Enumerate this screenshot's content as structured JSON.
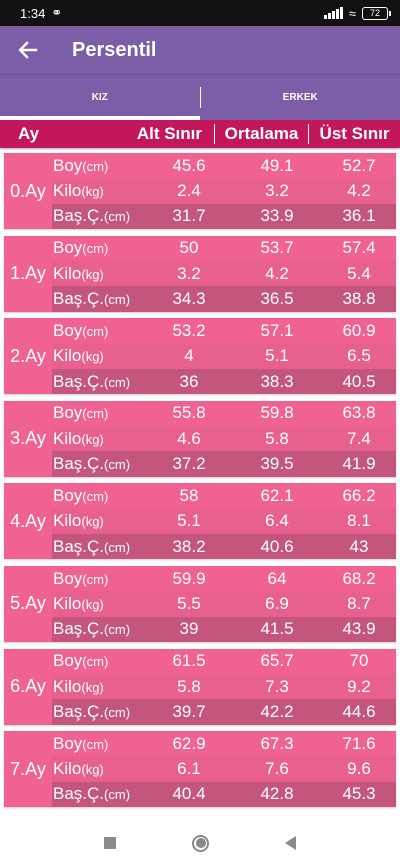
{
  "status_bar": {
    "time": "1:34",
    "battery": "72"
  },
  "app_bar": {
    "title": "Persentil"
  },
  "tabs": [
    {
      "label": "KIZ",
      "active": true
    },
    {
      "label": "ERKEK",
      "active": false
    }
  ],
  "table_header": {
    "month": "Ay",
    "lower": "Alt Sınır",
    "mean": "Ortalama",
    "upper": "Üst Sınır"
  },
  "row_labels": [
    {
      "name": "Boy",
      "unit": "(cm)"
    },
    {
      "name": "Kilo",
      "unit": "(kg)"
    },
    {
      "name": "Baş.Ç.",
      "unit": "(cm)"
    }
  ],
  "months": [
    {
      "label": "0.Ay",
      "rows": [
        [
          "45.6",
          "49.1",
          "52.7"
        ],
        [
          "2.4",
          "3.2",
          "4.2"
        ],
        [
          "31.7",
          "33.9",
          "36.1"
        ]
      ]
    },
    {
      "label": "1.Ay",
      "rows": [
        [
          "50",
          "53.7",
          "57.4"
        ],
        [
          "3.2",
          "4.2",
          "5.4"
        ],
        [
          "34.3",
          "36.5",
          "38.8"
        ]
      ]
    },
    {
      "label": "2.Ay",
      "rows": [
        [
          "53.2",
          "57.1",
          "60.9"
        ],
        [
          "4",
          "5.1",
          "6.5"
        ],
        [
          "36",
          "38.3",
          "40.5"
        ]
      ]
    },
    {
      "label": "3.Ay",
      "rows": [
        [
          "55.8",
          "59.8",
          "63.8"
        ],
        [
          "4.6",
          "5.8",
          "7.4"
        ],
        [
          "37.2",
          "39.5",
          "41.9"
        ]
      ]
    },
    {
      "label": "4.Ay",
      "rows": [
        [
          "58",
          "62.1",
          "66.2"
        ],
        [
          "5.1",
          "6.4",
          "8.1"
        ],
        [
          "38.2",
          "40.6",
          "43"
        ]
      ]
    },
    {
      "label": "5.Ay",
      "rows": [
        [
          "59.9",
          "64",
          "68.2"
        ],
        [
          "5.5",
          "6.9",
          "8.7"
        ],
        [
          "39",
          "41.5",
          "43.9"
        ]
      ]
    },
    {
      "label": "6.Ay",
      "rows": [
        [
          "61.5",
          "65.7",
          "70"
        ],
        [
          "5.8",
          "7.3",
          "9.2"
        ],
        [
          "39.7",
          "42.2",
          "44.6"
        ]
      ]
    },
    {
      "label": "7.Ay",
      "rows": [
        [
          "62.9",
          "67.3",
          "71.6"
        ],
        [
          "6.1",
          "7.6",
          "9.6"
        ],
        [
          "40.4",
          "42.8",
          "45.3"
        ]
      ]
    }
  ],
  "icons": {
    "back": "arrow-left-icon",
    "nav": [
      "recent-apps-icon",
      "home-icon",
      "back-triangle-icon"
    ]
  }
}
